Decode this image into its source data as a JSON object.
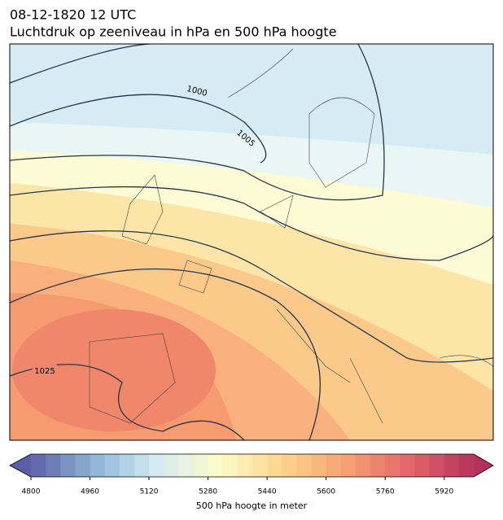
{
  "header": {
    "time": "08-12-1820 12 UTC",
    "title": "Luchtdruk op zeeniveau in hPa en 500 hPa hoogte"
  },
  "map": {
    "isobar_labels": [
      "1000",
      "1005",
      "1025"
    ]
  },
  "colorbar": {
    "label": "500 hPa hoogte in meter",
    "lim": [
      4800,
      6000
    ],
    "step": 40,
    "ticks": [
      4800,
      4960,
      5120,
      5280,
      5440,
      5600,
      5760,
      5920
    ],
    "colors": [
      "#5d5fa6",
      "#8db6d6",
      "#d5ecf3",
      "#fdfbc8",
      "#fdd28c",
      "#f6a070",
      "#e2656a",
      "#b3325c"
    ]
  }
}
